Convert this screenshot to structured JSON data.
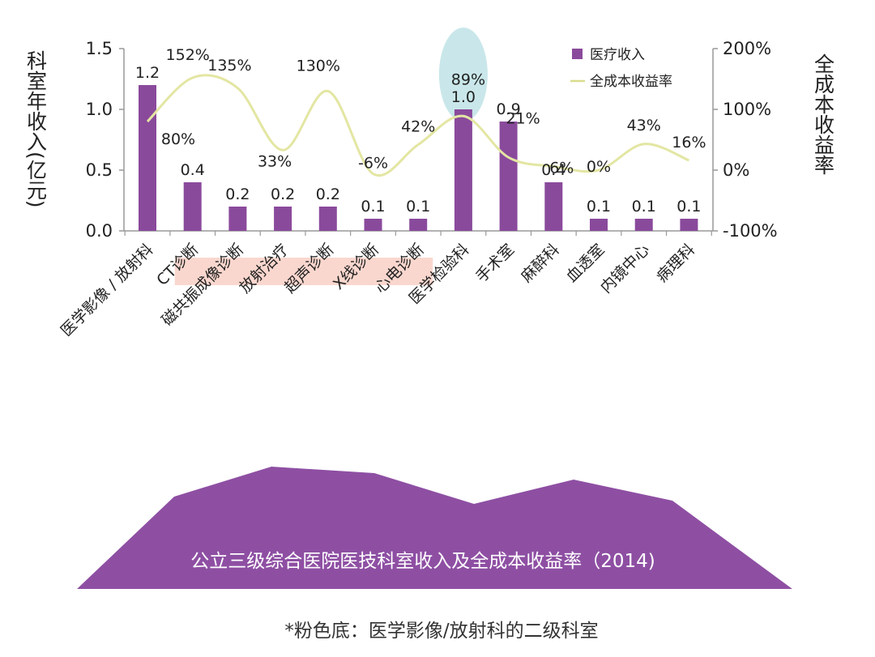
{
  "chart_data": {
    "type": "bar",
    "title": "公立三级综合医院医技科室收入及全成本收益率（2014)",
    "footnote": "*粉色底：医学影像/放射科的二级科室",
    "ylabel": "科室年收入(亿元)",
    "y2label": "全成本收益率",
    "ylim": [
      0.0,
      1.5
    ],
    "yticks": [
      "0.0",
      "0.5",
      "1.0",
      "1.5"
    ],
    "y2lim": [
      -100,
      200
    ],
    "y2ticks": [
      "-100%",
      "0%",
      "100%",
      "200%"
    ],
    "legend_position": "top-right",
    "categories": [
      "医学影像 / 放射科",
      "CT诊断",
      "磁共振成像诊断",
      "放射治疗",
      "超声诊断",
      "X线诊断",
      "心电诊断",
      "医学检验科",
      "手术室",
      "麻醉科",
      "血透室",
      "内镜中心",
      "病理科"
    ],
    "highlighted_categories": [
      "CT诊断",
      "磁共振成像诊断",
      "放射治疗",
      "超声诊断",
      "X线诊断",
      "心电诊断"
    ],
    "series": [
      {
        "name": "医疗收入",
        "type": "bar",
        "axis": "left",
        "values": [
          1.2,
          0.4,
          0.2,
          0.2,
          0.2,
          0.1,
          0.1,
          1.0,
          0.9,
          0.4,
          0.1,
          0.1,
          0.1
        ],
        "labels": [
          "1.2",
          "0.4",
          "0.2",
          "0.2",
          "0.2",
          "0.1",
          "0.1",
          "1.0",
          "0.9",
          "0.4",
          "0.1",
          "0.1",
          "0.1"
        ]
      },
      {
        "name": "全成本收益率",
        "type": "line",
        "axis": "right",
        "values": [
          80,
          152,
          135,
          33,
          130,
          -6,
          42,
          89,
          21,
          6,
          0,
          43,
          16
        ],
        "labels": [
          "80%",
          "152%",
          "135%",
          "33%",
          "130%",
          "-6%",
          "42%",
          "89%",
          "21%",
          "6%",
          "0%",
          "43%",
          "16%"
        ]
      }
    ],
    "colors": {
      "bar": "#8a4a9c",
      "line": "#e3e6a2",
      "highlight_band": "#f8c9bd",
      "highlight_bubble": "#bfe3e6",
      "banner": "#8e4fa3",
      "axis": "#999999"
    }
  }
}
